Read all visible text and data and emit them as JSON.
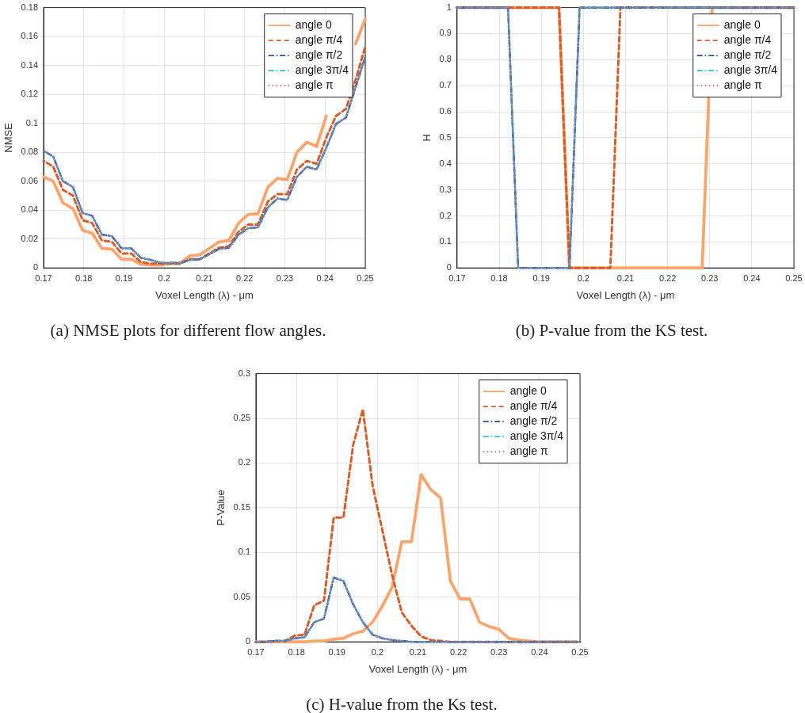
{
  "chart_data": [
    {
      "type": "line",
      "title": "(a) NMSE plots for different flow angles.",
      "xlabel": "Voxel Length (λ) - μm",
      "ylabel": "NMSE",
      "x": [
        0.17,
        0.1724,
        0.1748,
        0.1773,
        0.1797,
        0.1821,
        0.1845,
        0.187,
        0.1894,
        0.1918,
        0.1942,
        0.1967,
        0.1991,
        0.2015,
        0.2039,
        0.2064,
        0.2088,
        0.2112,
        0.2136,
        0.2161,
        0.2185,
        0.2209,
        0.2233,
        0.2258,
        0.2282,
        0.2306,
        0.233,
        0.2355,
        0.2379,
        0.2403,
        0.2427,
        0.2452,
        0.2476,
        0.25
      ],
      "series": [
        {
          "name": "angle 0",
          "color": "#fba56c",
          "line_style": "solid",
          "values": [
            0.063,
            0.06,
            0.045,
            0.041,
            0.026,
            0.024,
            0.0135,
            0.013,
            0.006,
            0.006,
            0.0025,
            0.002,
            0.002,
            0.003,
            0.003,
            0.0085,
            0.009,
            0.0135,
            0.018,
            0.019,
            0.031,
            0.037,
            0.0375,
            0.056,
            0.062,
            0.061,
            0.08,
            0.087,
            0.084,
            0.105,
            null,
            null,
            0.155,
            0.172
          ]
        },
        {
          "name": "angle π/4",
          "color": "#d45f2a",
          "line_style": "dashed",
          "values": [
            0.074,
            0.07,
            0.054,
            0.05,
            0.033,
            0.031,
            0.019,
            0.018,
            0.01,
            0.01,
            0.004,
            0.003,
            0.003,
            0.003,
            0.003,
            0.006,
            0.006,
            0.01,
            0.014,
            0.015,
            0.025,
            0.03,
            0.03,
            0.046,
            0.051,
            0.051,
            0.068,
            0.074,
            0.072,
            0.09,
            0.105,
            0.11,
            0.13,
            0.153
          ]
        },
        {
          "name": "angle π/2",
          "color": "#1f4fa0",
          "line_style": "dashdot",
          "values": [
            0.081,
            0.077,
            0.06,
            0.056,
            0.038,
            0.036,
            0.023,
            0.022,
            0.0135,
            0.0135,
            0.007,
            0.0055,
            0.0035,
            0.0035,
            0.0035,
            0.0055,
            0.006,
            0.0095,
            0.013,
            0.014,
            0.023,
            0.0275,
            0.028,
            0.042,
            0.048,
            0.047,
            0.063,
            0.07,
            0.068,
            0.083,
            0.0995,
            0.104,
            0.125,
            0.146
          ]
        },
        {
          "name": "angle 3π/4",
          "color": "#1ec2c6",
          "line_style": "dashdot",
          "values": [
            0.081,
            0.077,
            0.06,
            0.056,
            0.038,
            0.036,
            0.023,
            0.022,
            0.0135,
            0.0135,
            0.007,
            0.0055,
            0.0035,
            0.0035,
            0.0035,
            0.0055,
            0.006,
            0.0095,
            0.013,
            0.014,
            0.023,
            0.0275,
            0.028,
            0.042,
            0.048,
            0.047,
            0.063,
            0.07,
            0.068,
            0.083,
            0.0995,
            0.104,
            0.125,
            0.146
          ]
        },
        {
          "name": "angle π",
          "color": "#e0479e",
          "line_style": "dotted",
          "values": [
            0.081,
            0.077,
            0.06,
            0.056,
            0.038,
            0.036,
            0.023,
            0.022,
            0.0135,
            0.0135,
            0.007,
            0.0055,
            0.0035,
            0.0035,
            0.0035,
            0.0055,
            0.006,
            0.0095,
            0.013,
            0.014,
            0.023,
            0.0275,
            0.028,
            0.042,
            0.048,
            0.047,
            0.063,
            0.07,
            0.068,
            0.083,
            0.0995,
            0.104,
            0.125,
            0.146
          ]
        }
      ],
      "xlim": [
        0.17,
        0.25
      ],
      "xticks": [
        0.17,
        0.18,
        0.19,
        0.2,
        0.21,
        0.22,
        0.23,
        0.24,
        0.25
      ],
      "ylim": [
        0,
        0.18
      ],
      "yticks": [
        0,
        0.02,
        0.04,
        0.06,
        0.08,
        0.1,
        0.12,
        0.14,
        0.16,
        0.18
      ],
      "grid": true,
      "legend": "top right"
    },
    {
      "type": "line",
      "title": "(b) P-value from the KS test.",
      "xlabel": "Voxel Length (λ) - μm",
      "ylabel": "H",
      "x": [
        0.17,
        0.1724,
        0.1748,
        0.1773,
        0.1797,
        0.1821,
        0.1845,
        0.187,
        0.1894,
        0.1918,
        0.1942,
        0.1967,
        0.1991,
        0.2015,
        0.2039,
        0.2064,
        0.2088,
        0.2112,
        0.2136,
        0.2161,
        0.2185,
        0.2209,
        0.2233,
        0.2258,
        0.2282,
        0.2306,
        0.233,
        0.2355,
        0.2379,
        0.2403,
        0.2427,
        0.2452,
        0.2476,
        0.25
      ],
      "series": [
        {
          "name": "angle 0",
          "color": "#fba56c",
          "line_style": "solid",
          "values": [
            1,
            1,
            1,
            1,
            1,
            1,
            1,
            1,
            1,
            1,
            1,
            0,
            0,
            0,
            0,
            0,
            0,
            0,
            0,
            0,
            0,
            0,
            0,
            0,
            0,
            1,
            1,
            1,
            1,
            1,
            1,
            1,
            1,
            1
          ]
        },
        {
          "name": "angle π/4",
          "color": "#d45f2a",
          "line_style": "dashed",
          "values": [
            1,
            1,
            1,
            1,
            1,
            1,
            1,
            1,
            1,
            1,
            1,
            0,
            0,
            0,
            0,
            0,
            1,
            1,
            1,
            1,
            1,
            1,
            1,
            1,
            1,
            1,
            1,
            1,
            1,
            1,
            1,
            1,
            1,
            1
          ]
        },
        {
          "name": "angle π/2",
          "color": "#1f4fa0",
          "line_style": "dashdot",
          "values": [
            1,
            1,
            1,
            1,
            1,
            1,
            0,
            0,
            0,
            0,
            0,
            0,
            1,
            1,
            1,
            1,
            1,
            1,
            1,
            1,
            1,
            1,
            1,
            1,
            1,
            1,
            1,
            1,
            1,
            1,
            1,
            1,
            1,
            1
          ]
        },
        {
          "name": "angle 3π/4",
          "color": "#1ec2c6",
          "line_style": "dashdot",
          "values": [
            1,
            1,
            1,
            1,
            1,
            1,
            0,
            0,
            0,
            0,
            0,
            0,
            1,
            1,
            1,
            1,
            1,
            1,
            1,
            1,
            1,
            1,
            1,
            1,
            1,
            1,
            1,
            1,
            1,
            1,
            1,
            1,
            1,
            1
          ]
        },
        {
          "name": "angle π",
          "color": "#e0479e",
          "line_style": "dotted",
          "values": [
            1,
            1,
            1,
            1,
            1,
            1,
            0,
            0,
            0,
            0,
            0,
            0,
            1,
            1,
            1,
            1,
            1,
            1,
            1,
            1,
            1,
            1,
            1,
            1,
            1,
            1,
            1,
            1,
            1,
            1,
            1,
            1,
            1,
            1
          ]
        }
      ],
      "xlim": [
        0.17,
        0.25
      ],
      "xticks": [
        0.17,
        0.18,
        0.19,
        0.2,
        0.21,
        0.22,
        0.23,
        0.24,
        0.25
      ],
      "ylim": [
        0,
        1
      ],
      "yticks": [
        0,
        0.1,
        0.2,
        0.3,
        0.4,
        0.5,
        0.6,
        0.7,
        0.8,
        0.9,
        1
      ],
      "grid": true,
      "legend": "top right"
    },
    {
      "type": "line",
      "title": "(c) H-value from the Ks test.",
      "xlabel": "Voxel Length (λ) - μm",
      "ylabel": "P-Value",
      "x": [
        0.17,
        0.1724,
        0.1748,
        0.1772,
        0.1796,
        0.182,
        0.1844,
        0.1868,
        0.1892,
        0.1916,
        0.194,
        0.1964,
        0.1988,
        0.2012,
        0.2036,
        0.206,
        0.2084,
        0.2108,
        0.2132,
        0.2156,
        0.218,
        0.2204,
        0.2228,
        0.2252,
        0.2276,
        0.23,
        0.2324,
        0.2348,
        0.2372,
        0.2396,
        0.242,
        0.2444,
        0.2468,
        0.2492
      ],
      "series": [
        {
          "name": "angle 0",
          "color": "#fba56c",
          "line_style": "solid",
          "values": [
            0,
            0,
            0,
            0,
            0,
            0,
            0.001,
            0.001,
            0.003,
            0.004,
            0.009,
            0.012,
            0.022,
            0.04,
            0.061,
            0.112,
            0.112,
            0.187,
            0.17,
            0.161,
            0.068,
            0.048,
            0.048,
            0.022,
            0.017,
            0.014,
            0.004,
            0.002,
            0.001,
            0,
            0,
            0,
            0,
            0
          ]
        },
        {
          "name": "angle π/4",
          "color": "#d45f2a",
          "line_style": "dashed",
          "values": [
            0,
            0,
            0.001,
            0.001,
            0.007,
            0.008,
            0.041,
            0.046,
            0.139,
            0.139,
            0.22,
            0.26,
            0.175,
            0.125,
            0.075,
            0.033,
            0.018,
            0.006,
            0.002,
            0.001,
            0,
            0,
            0,
            0,
            0,
            0,
            0,
            0,
            0,
            0,
            0,
            0,
            0,
            0
          ]
        },
        {
          "name": "angle π/2",
          "color": "#1f4fa0",
          "line_style": "dashdot",
          "values": [
            0,
            0,
            0.001,
            0.001,
            0.004,
            0.005,
            0.022,
            0.026,
            0.072,
            0.068,
            0.042,
            0.022,
            0.008,
            0.004,
            0.002,
            0.001,
            0,
            0,
            0,
            0,
            0,
            0,
            0,
            0,
            0,
            0,
            0,
            0,
            0,
            0,
            0,
            0,
            0,
            0
          ]
        },
        {
          "name": "angle 3π/4",
          "color": "#1ec2c6",
          "line_style": "dashdot",
          "values": [
            0,
            0,
            0.001,
            0.001,
            0.004,
            0.005,
            0.022,
            0.026,
            0.072,
            0.068,
            0.042,
            0.022,
            0.008,
            0.004,
            0.002,
            0.001,
            0,
            0,
            0,
            0,
            0,
            0,
            0,
            0,
            0,
            0,
            0,
            0,
            0,
            0,
            0,
            0,
            0,
            0
          ]
        },
        {
          "name": "angle π",
          "color": "#e0479e",
          "line_style": "dotted",
          "values": [
            0,
            0,
            0.001,
            0.001,
            0.004,
            0.005,
            0.022,
            0.026,
            0.072,
            0.068,
            0.042,
            0.022,
            0.008,
            0.004,
            0.002,
            0.001,
            0,
            0,
            0,
            0,
            0,
            0,
            0,
            0,
            0,
            0,
            0,
            0,
            0,
            0,
            0,
            0,
            0,
            0
          ]
        }
      ],
      "xlim": [
        0.17,
        0.25
      ],
      "xticks": [
        0.17,
        0.18,
        0.19,
        0.2,
        0.21,
        0.22,
        0.23,
        0.24,
        0.25
      ],
      "ylim": [
        0,
        0.3
      ],
      "yticks": [
        0,
        0.05,
        0.1,
        0.15,
        0.2,
        0.25,
        0.3
      ],
      "grid": true,
      "legend": "top right"
    }
  ]
}
